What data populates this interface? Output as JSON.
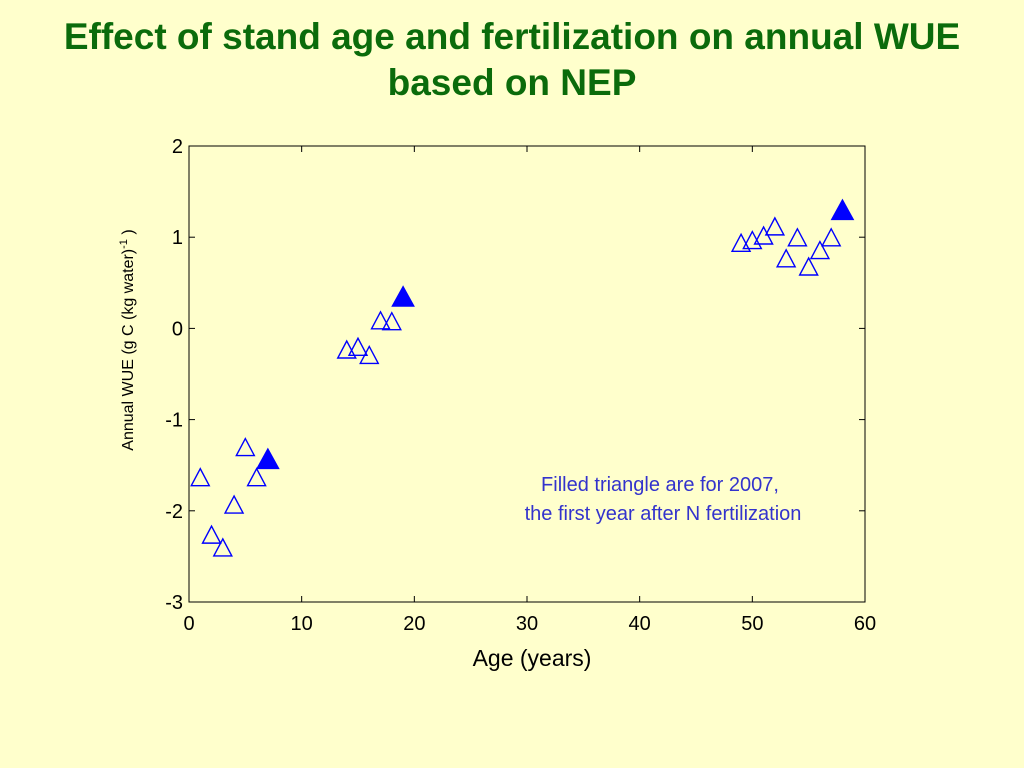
{
  "title": {
    "line1": "Effect of stand age and fertilization on annual WUE",
    "line2": "based on NEP"
  },
  "colors": {
    "background": "#FFFFCC",
    "title": "#0B6B0B",
    "marker": "#0000FF",
    "annotation": "#3333CC"
  },
  "chart_data": {
    "type": "scatter",
    "xlabel": "Age (years)",
    "ylabel": "Annual WUE (g C (kg water)",
    "ylabel_superscript": "-1",
    "ylabel_suffix": " )",
    "xlim": [
      0,
      60
    ],
    "ylim": [
      -3,
      2
    ],
    "x_ticks": [
      0,
      10,
      20,
      30,
      40,
      50,
      60
    ],
    "y_ticks": [
      -3,
      -2,
      -1,
      0,
      1,
      2
    ],
    "grid": false,
    "series": [
      {
        "marker": "open-triangle",
        "points": [
          [
            1,
            -1.65
          ],
          [
            2,
            -2.28
          ],
          [
            3,
            -2.42
          ],
          [
            4,
            -1.95
          ],
          [
            5,
            -1.32
          ],
          [
            6,
            -1.65
          ],
          [
            14,
            -0.25
          ],
          [
            15,
            -0.22
          ],
          [
            16,
            -0.31
          ],
          [
            17,
            0.07
          ],
          [
            18,
            0.06
          ],
          [
            49,
            0.92
          ],
          [
            50,
            0.95
          ],
          [
            51,
            1.0
          ],
          [
            52,
            1.1
          ],
          [
            53,
            0.75
          ],
          [
            54,
            0.98
          ],
          [
            55,
            0.66
          ],
          [
            56,
            0.84
          ],
          [
            57,
            0.98
          ]
        ]
      },
      {
        "marker": "filled-triangle",
        "points": [
          [
            7,
            -1.45
          ],
          [
            19,
            0.33
          ],
          [
            58,
            1.28
          ]
        ]
      }
    ],
    "annotation": {
      "line1": "Filled triangle are for 2007,",
      "line2": "the first year after N fertilization"
    }
  }
}
